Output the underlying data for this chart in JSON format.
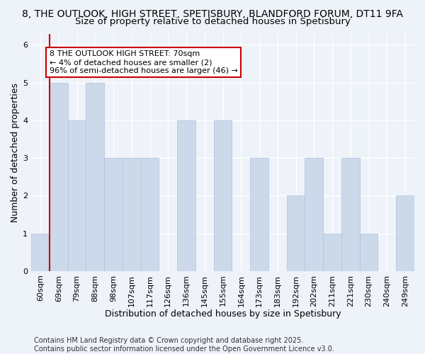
{
  "title_line1": "8, THE OUTLOOK, HIGH STREET, SPETISBURY, BLANDFORD FORUM, DT11 9FA",
  "title_line2": "Size of property relative to detached houses in Spetisbury",
  "xlabel": "Distribution of detached houses by size in Spetisbury",
  "ylabel": "Number of detached properties",
  "categories": [
    "60sqm",
    "69sqm",
    "79sqm",
    "88sqm",
    "98sqm",
    "107sqm",
    "117sqm",
    "126sqm",
    "136sqm",
    "145sqm",
    "155sqm",
    "164sqm",
    "173sqm",
    "183sqm",
    "192sqm",
    "202sqm",
    "211sqm",
    "221sqm",
    "230sqm",
    "240sqm",
    "249sqm"
  ],
  "values": [
    1,
    5,
    4,
    5,
    3,
    3,
    3,
    0,
    4,
    0,
    4,
    0,
    3,
    0,
    2,
    3,
    1,
    3,
    1,
    0,
    2
  ],
  "bar_color": "#ccd9ea",
  "bar_edge_color": "#adc3df",
  "highlight_bar_index": 1,
  "highlight_bar_edge_color": "#cc0000",
  "annotation_text_line1": "8 THE OUTLOOK HIGH STREET: 70sqm",
  "annotation_text_line2": "← 4% of detached houses are smaller (2)",
  "annotation_text_line3": "96% of semi-detached houses are larger (46) →",
  "annotation_box_color": "#ffffff",
  "annotation_edge_color": "#cc0000",
  "red_line_x": 1,
  "ylim": [
    0,
    6.3
  ],
  "yticks": [
    0,
    1,
    2,
    3,
    4,
    5,
    6
  ],
  "background_color": "#eef2f9",
  "grid_color": "#ffffff",
  "footnote": "Contains HM Land Registry data © Crown copyright and database right 2025.\nContains public sector information licensed under the Open Government Licence v3.0.",
  "title_fontsize": 10,
  "subtitle_fontsize": 9.5,
  "axis_label_fontsize": 9,
  "tick_fontsize": 8,
  "annotation_fontsize": 8,
  "footnote_fontsize": 7
}
